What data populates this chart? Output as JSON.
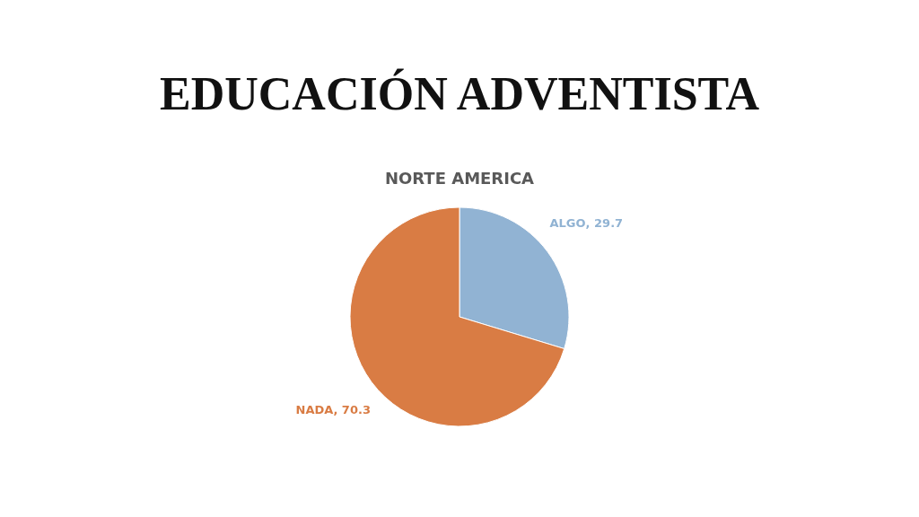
{
  "chart_data": {
    "type": "pie",
    "title": "EDUCACIÓN ADVENTISTA",
    "subtitle": "NORTE AMERICA",
    "categories": [
      "ALGO",
      "NADA"
    ],
    "values": [
      29.7,
      70.3
    ],
    "colors": [
      "#91b3d3",
      "#d97c44"
    ],
    "value_labels": [
      ", 29.7",
      ", 70.3"
    ],
    "legend": false
  }
}
